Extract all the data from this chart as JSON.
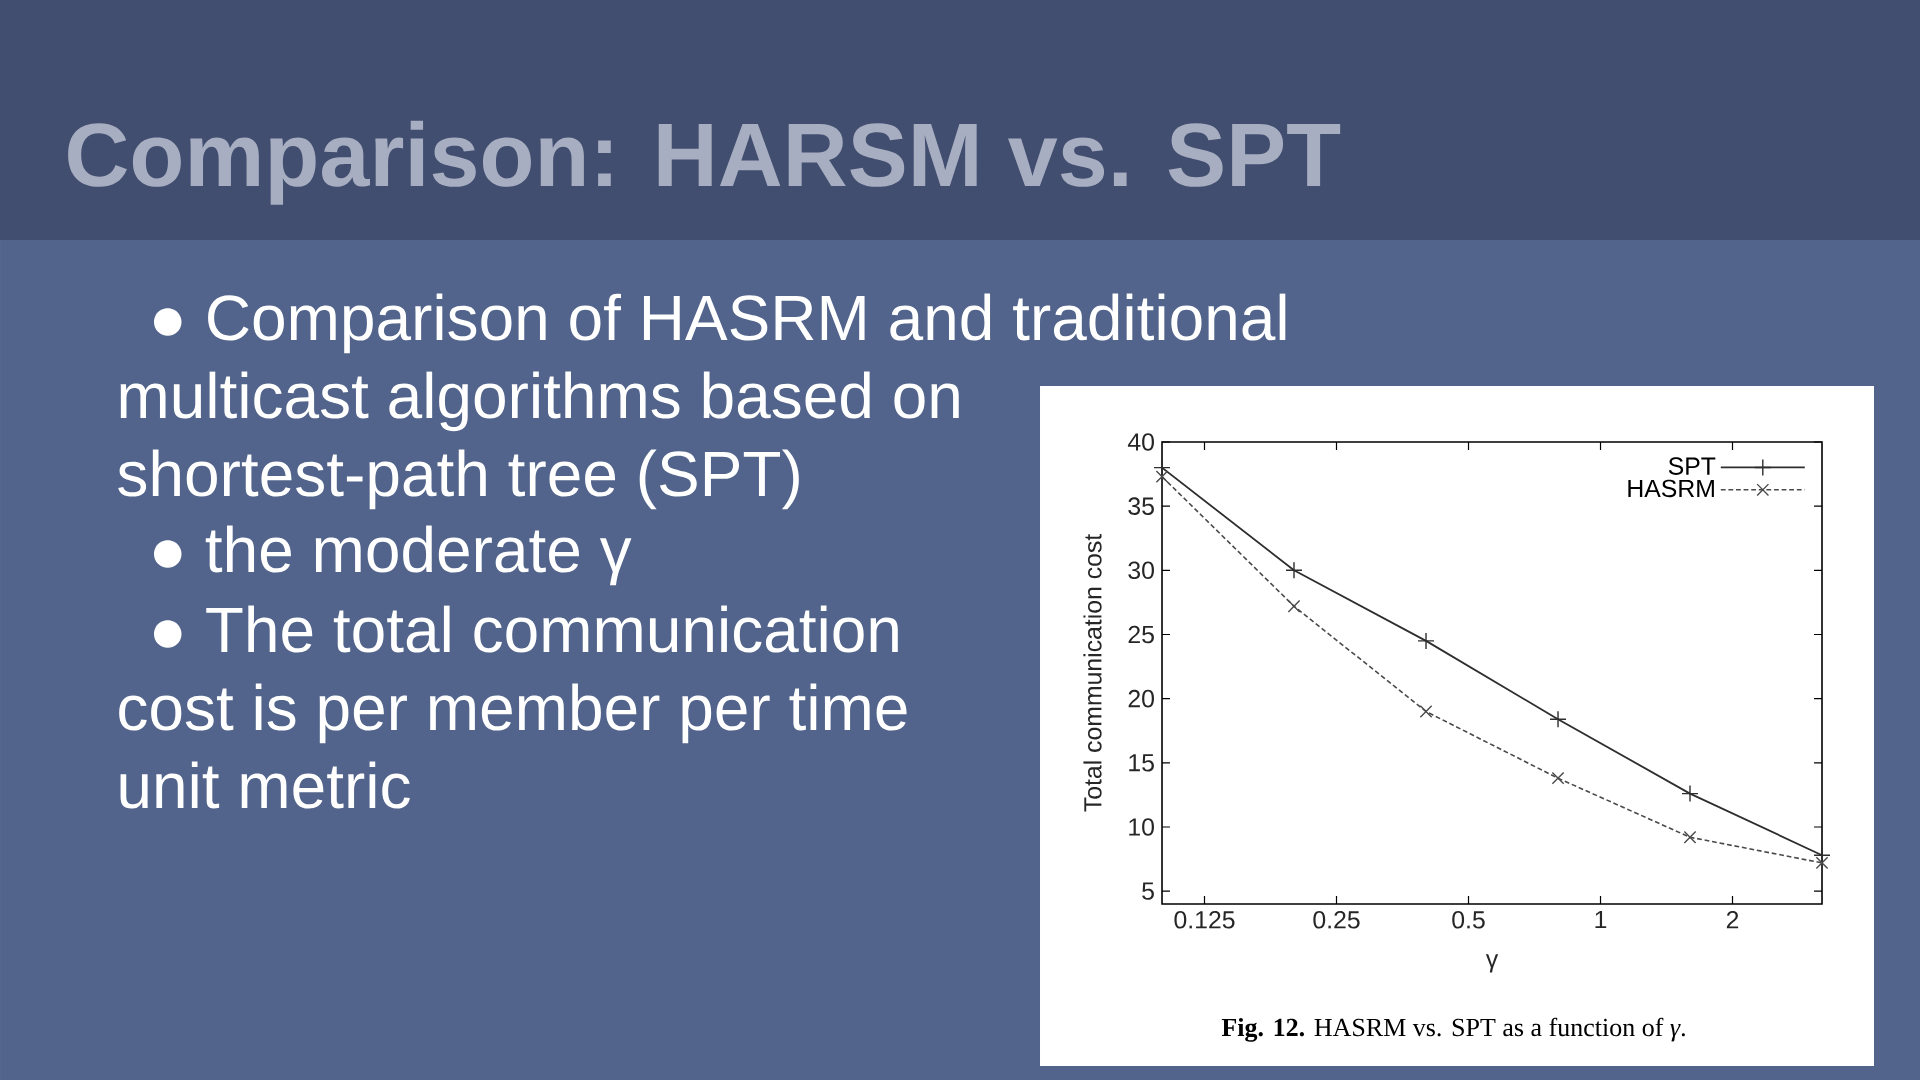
{
  "chart_data": {
    "type": "line",
    "title": "Comparison: HARSM vs. SPT",
    "xlabel": "γ",
    "ylabel": "Total communication cost",
    "x": [
      0.1,
      0.2,
      0.4,
      0.8,
      1.6,
      3.2
    ],
    "log": "x",
    "xlim": [
      0.1,
      3.2
    ],
    "xticks": [
      0.125,
      0.25,
      0.5,
      1,
      2
    ],
    "ylim": [
      4,
      40
    ],
    "yticks": [
      5,
      10,
      15,
      20,
      25,
      30,
      35,
      40
    ],
    "legend": "top right",
    "series": [
      {
        "name": "SPT",
        "color": "#2e2e2e",
        "marker": "plus",
        "line_style": "solid",
        "values": [
          38,
          30,
          24.5,
          18.4,
          12.6,
          7.8
        ]
      },
      {
        "name": "HASRM",
        "color": "#4a4a4a",
        "marker": "cross",
        "line_style": "dashed",
        "values": [
          37.3,
          27.2,
          19.0,
          13.8,
          9.2,
          7.2
        ]
      }
    ],
    "annotations": [
      "● Comparison of HASRM and traditional",
      "multicast algorithms based on",
      "shortest-path tree (SPT)",
      "● the moderate γ",
      "● The total communication",
      "cost is per member per time",
      "unit metric",
      "**Fig. 12.** HASRM vs. SPT as a function of *γ*."
    ]
  }
}
